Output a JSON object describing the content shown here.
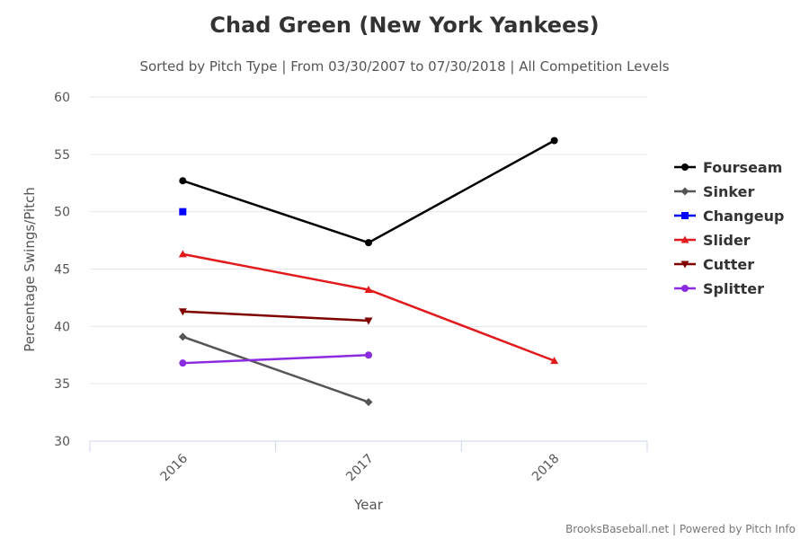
{
  "chart_data": {
    "type": "line",
    "title": "Chad Green (New York Yankees)",
    "subtitle": "Sorted by Pitch Type | From 03/30/2007 to 07/30/2018 | All Competition Levels",
    "xlabel": "Year",
    "ylabel": "Percentage Swings/Pitch",
    "categories": [
      "2016",
      "2017",
      "2018"
    ],
    "ylim": [
      30,
      60
    ],
    "yticks": [
      30,
      35,
      40,
      45,
      50,
      55,
      60
    ],
    "grid": true,
    "legend_position": "right",
    "series": [
      {
        "name": "Fourseam",
        "color": "#000000",
        "marker": "circle",
        "values": [
          52.7,
          47.3,
          56.2
        ]
      },
      {
        "name": "Sinker",
        "color": "#555555",
        "marker": "diamond",
        "values": [
          39.1,
          33.4,
          null
        ]
      },
      {
        "name": "Changeup",
        "color": "#0000ff",
        "marker": "square",
        "values": [
          50.0,
          null,
          null
        ]
      },
      {
        "name": "Slider",
        "color": "#e31a1c",
        "marker": "triangle",
        "values": [
          46.3,
          43.2,
          37.0
        ]
      },
      {
        "name": "Cutter",
        "color": "#800000",
        "marker": "triangle-down",
        "values": [
          41.3,
          40.5,
          null
        ]
      },
      {
        "name": "Splitter",
        "color": "#8a2be2",
        "marker": "circle",
        "values": [
          36.8,
          37.5,
          null
        ]
      }
    ],
    "credits": "BrooksBaseball.net | Powered by Pitch Info"
  }
}
